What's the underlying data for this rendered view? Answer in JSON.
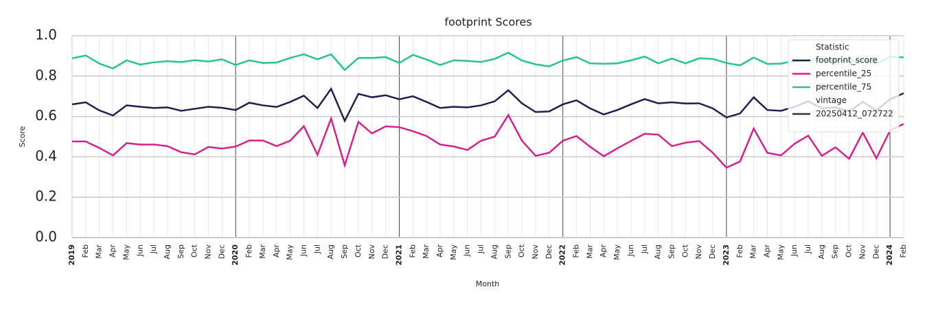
{
  "chart_data": {
    "type": "line",
    "title": "footprint Scores",
    "x_label": "Month",
    "y_label": "Score",
    "categories": [
      "2019",
      "Feb",
      "Mar",
      "Apr",
      "May",
      "Jun",
      "Jul",
      "Aug",
      "Sep",
      "Oct",
      "Nov",
      "Dec",
      "2020",
      "Feb",
      "Mar",
      "Apr",
      "May",
      "Jun",
      "Jul",
      "Aug",
      "Sep",
      "Oct",
      "Nov",
      "Dec",
      "2021",
      "Feb",
      "Mar",
      "Apr",
      "May",
      "Jun",
      "Jul",
      "Aug",
      "Sep",
      "Oct",
      "Nov",
      "Dec",
      "2022",
      "Feb",
      "Mar",
      "Apr",
      "May",
      "Jun",
      "Jul",
      "Aug",
      "Sep",
      "Oct",
      "Nov",
      "Dec",
      "2023",
      "Feb",
      "Mar",
      "Apr",
      "May",
      "Jun",
      "Jul",
      "Aug",
      "Sep",
      "Oct",
      "Nov",
      "Dec",
      "2024",
      "Feb"
    ],
    "series": [
      {
        "name": "footprint_score",
        "color": "#1b1f4b",
        "values": [
          0.66,
          0.67,
          0.63,
          0.605,
          0.655,
          0.648,
          0.642,
          0.645,
          0.628,
          0.638,
          0.648,
          0.643,
          0.632,
          0.668,
          0.655,
          0.647,
          0.672,
          0.703,
          0.642,
          0.737,
          0.578,
          0.712,
          0.695,
          0.705,
          0.685,
          0.7,
          0.672,
          0.642,
          0.648,
          0.645,
          0.655,
          0.675,
          0.73,
          0.665,
          0.622,
          0.625,
          0.66,
          0.68,
          0.64,
          0.61,
          0.632,
          0.66,
          0.686,
          0.665,
          0.67,
          0.664,
          0.665,
          0.64,
          0.595,
          0.615,
          0.695,
          0.632,
          0.628,
          0.648,
          0.675,
          0.64,
          0.645,
          0.625,
          0.672,
          0.63,
          0.685,
          0.715
        ]
      },
      {
        "name": "percentile_25",
        "color": "#d61f8c",
        "values": [
          0.476,
          0.476,
          0.444,
          0.407,
          0.468,
          0.461,
          0.461,
          0.453,
          0.423,
          0.412,
          0.449,
          0.441,
          0.451,
          0.481,
          0.481,
          0.453,
          0.48,
          0.552,
          0.41,
          0.59,
          0.358,
          0.573,
          0.516,
          0.551,
          0.547,
          0.527,
          0.503,
          0.461,
          0.451,
          0.434,
          0.48,
          0.5,
          0.607,
          0.48,
          0.405,
          0.42,
          0.48,
          0.503,
          0.45,
          0.403,
          0.442,
          0.479,
          0.514,
          0.51,
          0.453,
          0.47,
          0.478,
          0.42,
          0.346,
          0.377,
          0.54,
          0.42,
          0.407,
          0.465,
          0.505,
          0.405,
          0.447,
          0.39,
          0.52,
          0.393,
          0.53,
          0.563
        ]
      },
      {
        "name": "percentile_75",
        "color": "#22c58b",
        "values": [
          0.888,
          0.902,
          0.862,
          0.838,
          0.878,
          0.857,
          0.868,
          0.874,
          0.869,
          0.879,
          0.872,
          0.883,
          0.855,
          0.878,
          0.865,
          0.867,
          0.89,
          0.908,
          0.883,
          0.908,
          0.83,
          0.89,
          0.89,
          0.894,
          0.865,
          0.905,
          0.882,
          0.855,
          0.878,
          0.875,
          0.87,
          0.885,
          0.916,
          0.877,
          0.858,
          0.848,
          0.877,
          0.894,
          0.863,
          0.861,
          0.863,
          0.878,
          0.897,
          0.863,
          0.887,
          0.863,
          0.888,
          0.885,
          0.865,
          0.853,
          0.892,
          0.86,
          0.862,
          0.875,
          0.878,
          0.88,
          0.878,
          0.875,
          0.88,
          0.862,
          0.895,
          0.893
        ]
      }
    ],
    "ylim": [
      0,
      1
    ],
    "yticks": [
      {
        "value": 0,
        "label": "0.0"
      },
      0.2,
      0.4,
      0.6,
      0.8,
      {
        "value": 1,
        "label": "1.0"
      }
    ],
    "grid": true,
    "legend": {
      "title": "Statistic",
      "position": "upper right",
      "style_title": "vintage",
      "style_entries": [
        {
          "name": "20250412_072722",
          "color": "#333333"
        }
      ]
    }
  }
}
